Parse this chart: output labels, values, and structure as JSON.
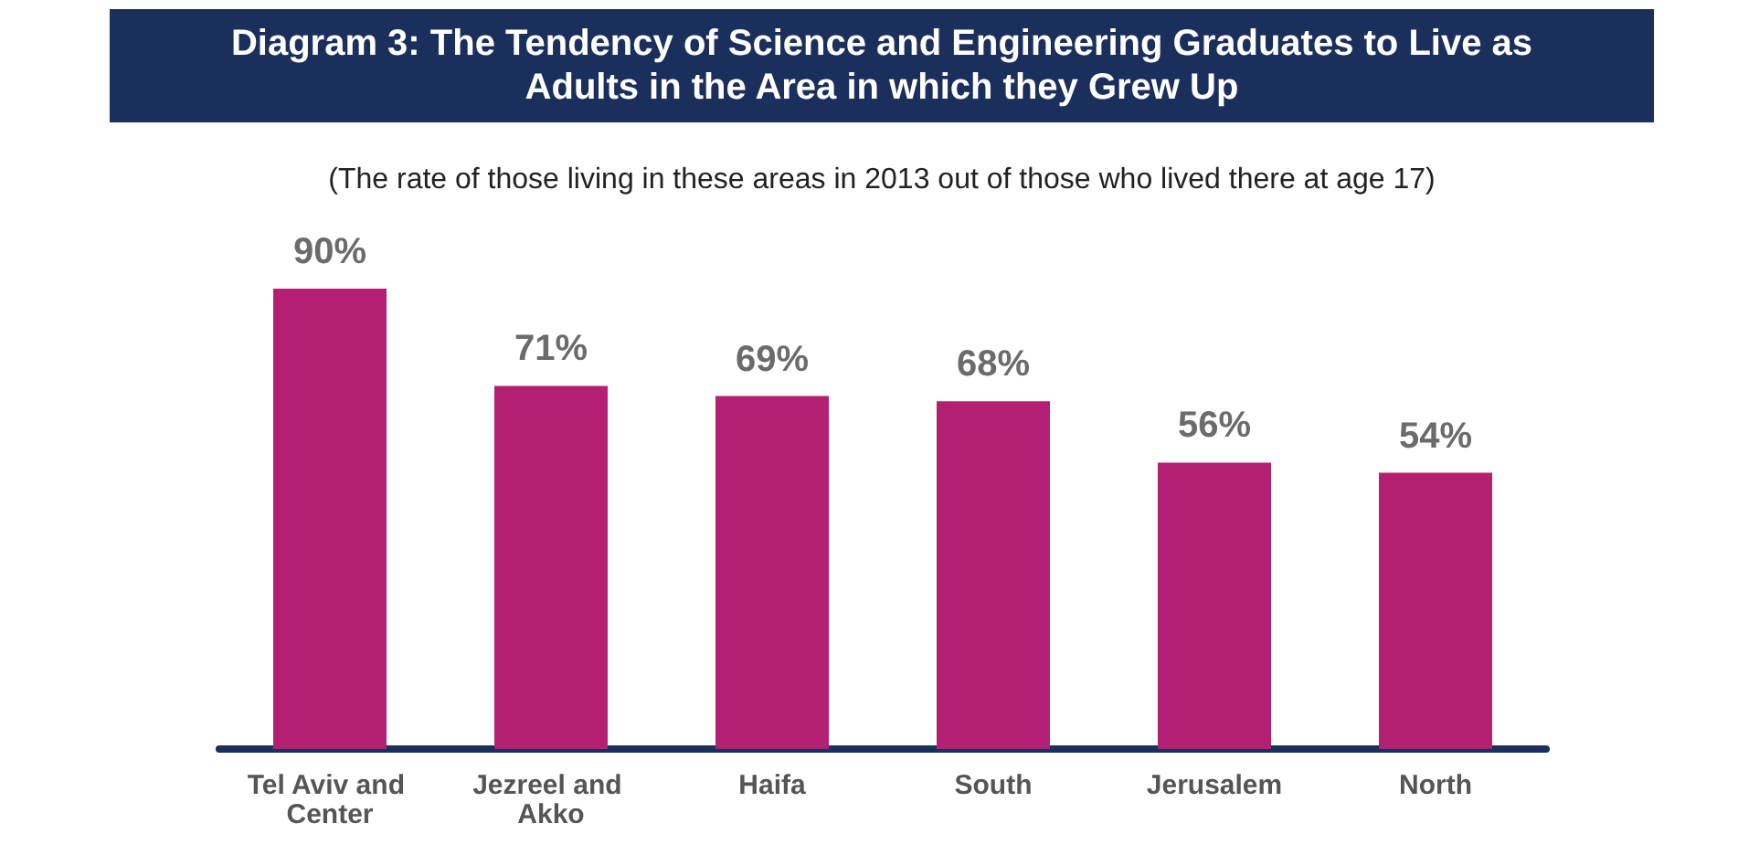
{
  "chart_data": {
    "type": "bar",
    "title": "Diagram 3: The Tendency of Science and Engineering Graduates to Live as Adults in the Area in which they Grew Up",
    "subtitle": "(The rate of those living in these areas in 2013 out of those who lived there at age 17)",
    "categories": [
      "Tel Aviv and Center",
      "Jezreel and Akko",
      "Haifa",
      "South",
      "Jerusalem",
      "North"
    ],
    "values": [
      90,
      71,
      69,
      68,
      56,
      54
    ],
    "color": "#b31f72",
    "value_labels": [
      "90%",
      "71%",
      "69%",
      "68%",
      "56%",
      "54%"
    ]
  }
}
